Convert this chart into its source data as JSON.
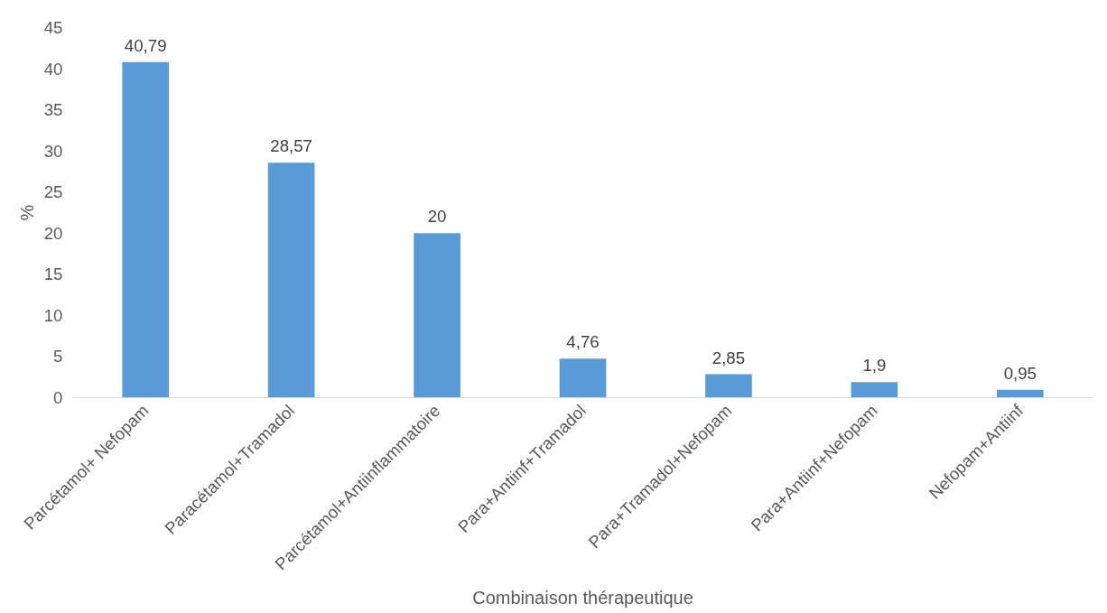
{
  "chart_data": {
    "type": "bar",
    "xlabel": "Combinaison thérapeutique",
    "ylabel": "%",
    "categories": [
      "Parcétamol+ Nefopam",
      "Paracétamol+Tramadol",
      "Parcétamol+Antiinflammatoire",
      "Para+Antiinf+Tramadol",
      "Para+Tramadol+Nefopam",
      "Para+Antiinf+Nefopam",
      "Nefopam+Antiinf"
    ],
    "values": [
      40.79,
      28.57,
      20,
      4.76,
      2.85,
      1.9,
      0.95
    ],
    "value_labels": [
      "40,79",
      "28,57",
      "20",
      "4,76",
      "2,85",
      "1,9",
      "0,95"
    ],
    "color": "#5b9bd5",
    "ylim": [
      0,
      45
    ],
    "yticks": [
      0,
      5,
      10,
      15,
      20,
      25,
      30,
      35,
      40,
      45
    ],
    "grid": false
  }
}
